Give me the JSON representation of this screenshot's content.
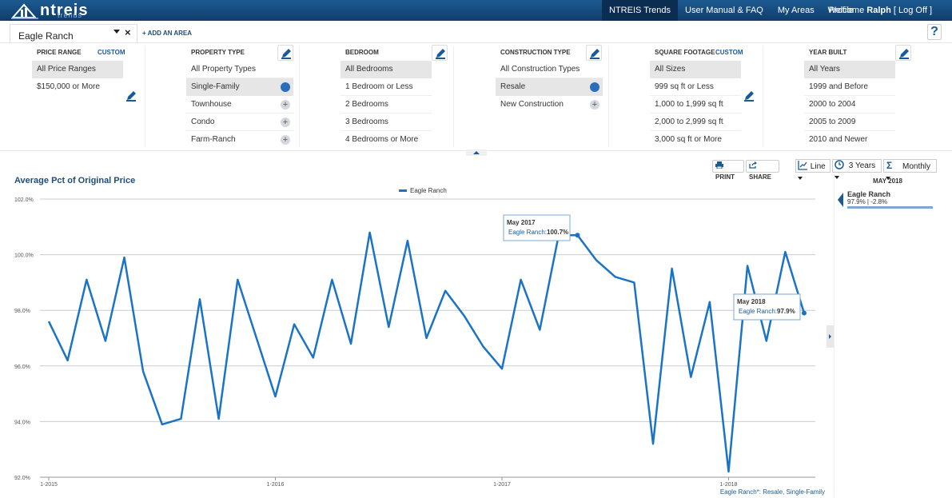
{
  "brand": {
    "name": "ntreis",
    "sub": "trends"
  },
  "nav": {
    "items": [
      {
        "label": "NTREIS Trends",
        "active": true
      },
      {
        "label": "User Manual & FAQ"
      },
      {
        "label": "My Areas"
      },
      {
        "label": "Profile"
      }
    ],
    "welcome_prefix": "Welcome",
    "user": "Ralph",
    "logoff": "[ Log Off ]"
  },
  "area": {
    "selected": "Eagle Ranch",
    "add_label": "+ ADD AN AREA",
    "help": "?"
  },
  "filters": {
    "price": {
      "title": "PRICE RANGE",
      "custom": "CUSTOM",
      "options": [
        "All Price Ranges",
        "$150,000 or More"
      ]
    },
    "property": {
      "title": "PROPERTY TYPE",
      "options": [
        "All Property Types",
        "Single-Family",
        "Townhouse",
        "Condo",
        "Farm-Ranch"
      ]
    },
    "bedroom": {
      "title": "BEDROOM",
      "options": [
        "All Bedrooms",
        "1 Bedroom or Less",
        "2 Bedrooms",
        "3 Bedrooms",
        "4 Bedrooms or More"
      ]
    },
    "construction": {
      "title": "CONSTRUCTION TYPE",
      "options": [
        "All Construction Types",
        "Resale",
        "New Construction"
      ]
    },
    "sqft": {
      "title": "SQUARE FOOTAGE",
      "custom": "CUSTOM",
      "options": [
        "All Sizes",
        "999 sq ft or Less",
        "1,000 to 1,999 sq ft",
        "2,000 to 2,999 sq ft",
        "3,000 sq ft or More"
      ]
    },
    "year": {
      "title": "YEAR BUILT",
      "options": [
        "All Years",
        "1999 and Before",
        "2000 to 2004",
        "2005 to 2009",
        "2010 and Newer"
      ]
    }
  },
  "toolbar": {
    "print": "PRINT",
    "share": "SHARE",
    "chart_type": "Line",
    "range": "3 Years",
    "period": "Monthly"
  },
  "side": {
    "month": "MAY 2018",
    "name": "Eagle Ranch",
    "value": "97.9% | -2.8%"
  },
  "chart_data": {
    "type": "line",
    "title": "Average Pct of Original Price",
    "legend": "Eagle Ranch",
    "footnote": "Eagle Ranch*: Resale, Single-Family",
    "ylim": [
      92,
      102
    ],
    "yticks": [
      "92.0%",
      "94.0%",
      "96.0%",
      "98.0%",
      "100.0%",
      "102.0%"
    ],
    "xticks": [
      "1-2015",
      "1-2016",
      "1-2017",
      "1-2018"
    ],
    "series": [
      {
        "name": "Eagle Ranch",
        "values": [
          97.6,
          96.2,
          99.1,
          96.9,
          99.9,
          95.8,
          93.9,
          94.1,
          98.4,
          94.1,
          99.1,
          97.0,
          94.9,
          97.5,
          96.3,
          99.1,
          96.8,
          100.8,
          97.4,
          100.5,
          97.0,
          98.7,
          97.8,
          96.7,
          95.9,
          99.1,
          97.3,
          100.7,
          100.7,
          99.8,
          99.2,
          99.0,
          93.2,
          99.5,
          95.6,
          98.3,
          92.2,
          99.6,
          96.9,
          100.1,
          97.9
        ]
      }
    ],
    "tooltips": [
      {
        "month": "May 2017",
        "label": "Eagle Ranch:",
        "value": "100.7%"
      },
      {
        "month": "May 2018",
        "label": "Eagle Ranch:",
        "value": "97.9%"
      }
    ]
  }
}
